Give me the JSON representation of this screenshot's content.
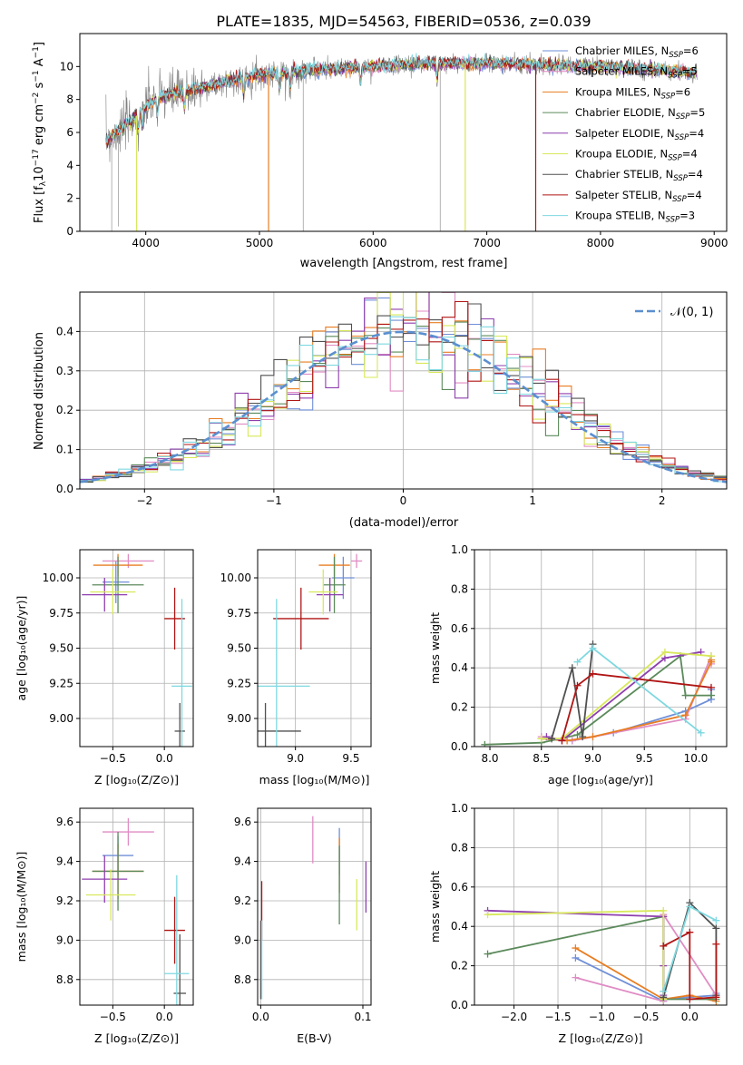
{
  "colors": {
    "Chabrier MILES": "#6f8fd8",
    "Salpeter MILES": "#e08cc4",
    "Kroupa MILES": "#e87d22",
    "Chabrier ELODIE": "#5b8a5b",
    "Salpeter ELODIE": "#8e3fae",
    "Kroupa ELODIE": "#d8e85a",
    "Chabrier STELIB": "#505050",
    "Salpeter STELIB": "#b01515",
    "Kroupa STELIB": "#7fd8e0",
    "data": "#808080",
    "normal": "#5b8fd0"
  },
  "chart_data": [
    {
      "id": "spectrum",
      "type": "line",
      "title": "PLATE=1835, MJD=54563, FIBERID=0536, z=0.039",
      "xlabel": "wavelength [Angstrom, rest frame]",
      "ylabel": "Flux [f_λ10^-17 erg cm^-2 s^-1 A^-1]",
      "xlim": [
        3420,
        9110
      ],
      "ylim": [
        0,
        12
      ],
      "xticks": [
        "4000",
        "5000",
        "6000",
        "7000",
        "8000",
        "9000"
      ],
      "yticks": [
        "0",
        "2",
        "4",
        "6",
        "8",
        "10"
      ],
      "legend_position": "top-right",
      "legend": [
        "Chabrier MILES, N_SSP=6",
        "Salpeter MILES, N_SSP=5",
        "Kroupa MILES, N_SSP=6",
        "Chabrier ELODIE, N_SSP=5",
        "Salpeter ELODIE, N_SSP=4",
        "Kroupa ELODIE, N_SSP=4",
        "Chabrier STELIB, N_SSP=4",
        "Salpeter STELIB, N_SSP=4",
        "Kroupa STELIB, N_SSP=3"
      ],
      "continuum": [
        [
          3650,
          5.5
        ],
        [
          3800,
          6.3
        ],
        [
          3950,
          7.2
        ],
        [
          4100,
          8.1
        ],
        [
          4300,
          8.4
        ],
        [
          4600,
          8.9
        ],
        [
          5000,
          9.5
        ],
        [
          5500,
          9.8
        ],
        [
          6000,
          10.0
        ],
        [
          6500,
          10.2
        ],
        [
          7000,
          10.2
        ],
        [
          7500,
          10.1
        ],
        [
          8000,
          10.0
        ],
        [
          8500,
          9.8
        ],
        [
          8850,
          9.6
        ]
      ]
    },
    {
      "id": "residuals",
      "type": "bar",
      "xlabel": "(data-model)/error",
      "ylabel": "Normed distribution",
      "xlim": [
        -2.5,
        2.5
      ],
      "ylim": [
        0,
        0.5
      ],
      "xticks": [
        "−2",
        "−1",
        "0",
        "1",
        "2"
      ],
      "yticks": [
        "0.0",
        "0.1",
        "0.2",
        "0.3",
        "0.4"
      ],
      "legend": [
        "𝒩(0, 1)"
      ],
      "legend_position": "top-right",
      "bin_width": 0.1
    },
    {
      "id": "age-vs-Z",
      "type": "scatter",
      "xlabel": "Z [log10(Z/Z⊙)]",
      "ylabel": "age [log10(age/yr)]",
      "xlim": [
        -0.82,
        0.28
      ],
      "ylim": [
        8.8,
        10.2
      ],
      "xticks": [
        "−0.5",
        "0.0"
      ],
      "yticks": [
        "9.00",
        "9.25",
        "9.50",
        "9.75",
        "10.00"
      ],
      "points": [
        {
          "s": "Chabrier MILES",
          "x": -0.47,
          "y": 9.97,
          "xe": 0.13,
          "ye": 0.15
        },
        {
          "s": "Salpeter MILES",
          "x": -0.35,
          "y": 10.12,
          "xe": 0.25,
          "ye": 0.05
        },
        {
          "s": "Kroupa MILES",
          "x": -0.45,
          "y": 10.09,
          "xe": 0.24,
          "ye": 0.08
        },
        {
          "s": "Chabrier ELODIE",
          "x": -0.45,
          "y": 9.95,
          "xe": 0.25,
          "ye": 0.2
        },
        {
          "s": "Salpeter ELODIE",
          "x": -0.58,
          "y": 9.88,
          "xe": 0.22,
          "ye": 0.12
        },
        {
          "s": "Kroupa ELODIE",
          "x": -0.5,
          "y": 9.9,
          "xe": 0.22,
          "ye": 0.16
        },
        {
          "s": "Chabrier STELIB",
          "x": 0.15,
          "y": 8.91,
          "xe": 0.05,
          "ye": 0.2
        },
        {
          "s": "Salpeter STELIB",
          "x": 0.1,
          "y": 9.71,
          "xe": 0.1,
          "ye": 0.22
        },
        {
          "s": "Kroupa STELIB",
          "x": 0.17,
          "y": 9.23,
          "xe": 0.1,
          "ye": 0.62
        }
      ]
    },
    {
      "id": "age-vs-mass",
      "type": "scatter",
      "xlabel": "mass [log10(M/M⊙)]",
      "ylabel": "",
      "xlim": [
        8.66,
        9.68
      ],
      "ylim": [
        8.8,
        10.2
      ],
      "xticks": [
        "9.0",
        "9.5"
      ],
      "yticks": [
        "9.00",
        "9.25",
        "9.50",
        "9.75",
        "10.00"
      ],
      "points": [
        {
          "s": "Chabrier MILES",
          "x": 9.43,
          "y": 10.0,
          "xe": 0.1,
          "ye": 0.15
        },
        {
          "s": "Salpeter MILES",
          "x": 9.55,
          "y": 10.12,
          "xe": 0.05,
          "ye": 0.05
        },
        {
          "s": "Kroupa MILES",
          "x": 9.35,
          "y": 10.09,
          "xe": 0.14,
          "ye": 0.08
        },
        {
          "s": "Chabrier ELODIE",
          "x": 9.35,
          "y": 9.95,
          "xe": 0.1,
          "ye": 0.2
        },
        {
          "s": "Salpeter ELODIE",
          "x": 9.31,
          "y": 9.88,
          "xe": 0.12,
          "ye": 0.12
        },
        {
          "s": "Kroupa ELODIE",
          "x": 9.25,
          "y": 9.9,
          "xe": 0.13,
          "ye": 0.16
        },
        {
          "s": "Chabrier STELIB",
          "x": 8.73,
          "y": 8.91,
          "xe": 0.32,
          "ye": 0.2
        },
        {
          "s": "Salpeter STELIB",
          "x": 9.05,
          "y": 9.71,
          "xe": 0.25,
          "ye": 0.22
        },
        {
          "s": "Kroupa STELIB",
          "x": 8.83,
          "y": 9.23,
          "xe": 0.3,
          "ye": 0.62
        }
      ]
    },
    {
      "id": "mass-weight-vs-age",
      "type": "line",
      "xlabel": "age [log10(age/yr)]",
      "ylabel": "mass weight",
      "xlim": [
        7.85,
        10.3
      ],
      "ylim": [
        0,
        1
      ],
      "xticks": [
        "8.0",
        "8.5",
        "9.0",
        "9.5",
        "10.0"
      ],
      "yticks": [
        "0.0",
        "0.2",
        "0.4",
        "0.6",
        "0.8",
        "1.0"
      ],
      "series": [
        {
          "name": "Chabrier MILES",
          "x": [
            8.5,
            8.8,
            9.2,
            9.9,
            10.15,
            10.15
          ],
          "y": [
            0.04,
            0.03,
            0.07,
            0.18,
            0.24,
            0.29
          ]
        },
        {
          "name": "Salpeter MILES",
          "x": [
            8.5,
            8.8,
            9.9,
            10.15,
            10.15
          ],
          "y": [
            0.05,
            0.03,
            0.14,
            0.46,
            0.42
          ]
        },
        {
          "name": "Kroupa MILES",
          "x": [
            8.5,
            8.75,
            9.0,
            9.9,
            10.15,
            10.15
          ],
          "y": [
            0.04,
            0.03,
            0.05,
            0.16,
            0.43,
            0.44
          ]
        },
        {
          "name": "Chabrier ELODIE",
          "x": [
            7.95,
            8.5,
            8.85,
            9.85,
            9.9,
            10.15
          ],
          "y": [
            0.01,
            0.02,
            0.06,
            0.46,
            0.26,
            0.26
          ]
        },
        {
          "name": "Salpeter ELODIE",
          "x": [
            8.55,
            8.7,
            9.7,
            10.05
          ],
          "y": [
            0.05,
            0.03,
            0.45,
            0.48
          ]
        },
        {
          "name": "Kroupa ELODIE",
          "x": [
            8.5,
            8.7,
            9.7,
            10.15
          ],
          "y": [
            0.04,
            0.04,
            0.48,
            0.46
          ]
        },
        {
          "name": "Chabrier STELIB",
          "x": [
            8.6,
            8.8,
            8.9,
            9.0
          ],
          "y": [
            0.04,
            0.4,
            0.05,
            0.52
          ]
        },
        {
          "name": "Salpeter STELIB",
          "x": [
            8.7,
            8.85,
            9.0,
            10.15
          ],
          "y": [
            0.03,
            0.31,
            0.37,
            0.3
          ]
        },
        {
          "name": "Kroupa STELIB",
          "x": [
            8.85,
            9.0,
            10.05
          ],
          "y": [
            0.43,
            0.5,
            0.07
          ]
        }
      ]
    },
    {
      "id": "mass-vs-Z",
      "type": "scatter",
      "xlabel": "Z [log10(Z/Z⊙)]",
      "ylabel": "mass [log10(M/M⊙)]",
      "xlim": [
        -0.82,
        0.28
      ],
      "ylim": [
        8.67,
        9.67
      ],
      "xticks": [
        "−0.5",
        "0.0"
      ],
      "yticks": [
        "8.8",
        "9.0",
        "9.2",
        "9.4",
        "9.6"
      ],
      "points": [
        {
          "s": "Chabrier MILES",
          "x": -0.45,
          "y": 9.43,
          "xe": 0.15,
          "ye": 0.1
        },
        {
          "s": "Salpeter MILES",
          "x": -0.35,
          "y": 9.55,
          "xe": 0.25,
          "ye": 0.07
        },
        {
          "s": "Kroupa MILES",
          "x": -0.45,
          "y": 9.35,
          "xe": 0.25,
          "ye": 0.14
        },
        {
          "s": "Chabrier ELODIE",
          "x": -0.45,
          "y": 9.35,
          "xe": 0.25,
          "ye": 0.2
        },
        {
          "s": "Salpeter ELODIE",
          "x": -0.58,
          "y": 9.31,
          "xe": 0.22,
          "ye": 0.12
        },
        {
          "s": "Kroupa ELODIE",
          "x": -0.52,
          "y": 9.23,
          "xe": 0.24,
          "ye": 0.13
        },
        {
          "s": "Chabrier STELIB",
          "x": 0.15,
          "y": 8.73,
          "xe": 0.06,
          "ye": 0.3
        },
        {
          "s": "Salpeter STELIB",
          "x": 0.1,
          "y": 9.05,
          "xe": 0.1,
          "ye": 0.17
        },
        {
          "s": "Kroupa STELIB",
          "x": 0.12,
          "y": 8.83,
          "xe": 0.12,
          "ye": 0.5
        }
      ]
    },
    {
      "id": "mass-vs-EBV",
      "type": "scatter",
      "xlabel": "E(B-V)",
      "ylabel": "",
      "xlim": [
        -0.003,
        0.108
      ],
      "ylim": [
        8.67,
        9.67
      ],
      "xticks": [
        "0.0",
        "0.1"
      ],
      "yticks": [
        "8.8",
        "9.0",
        "9.2",
        "9.4",
        "9.6"
      ],
      "points": [
        {
          "s": "Chabrier MILES",
          "x": 0.077,
          "y": 9.45,
          "ye": 0.12
        },
        {
          "s": "Salpeter MILES",
          "x": 0.051,
          "y": 9.51,
          "ye": 0.12
        },
        {
          "s": "Kroupa MILES",
          "x": 0.077,
          "y": 9.38,
          "ye": 0.14
        },
        {
          "s": "Chabrier ELODIE",
          "x": 0.077,
          "y": 9.28,
          "ye": 0.2
        },
        {
          "s": "Salpeter ELODIE",
          "x": 0.103,
          "y": 9.27,
          "ye": 0.13
        },
        {
          "s": "Kroupa ELODIE",
          "x": 0.094,
          "y": 9.18,
          "ye": 0.13
        },
        {
          "s": "Chabrier STELIB",
          "x": 0.0,
          "y": 8.9,
          "ye": 0.2
        },
        {
          "s": "Salpeter STELIB",
          "x": 0.001,
          "y": 9.15,
          "ye": 0.15
        },
        {
          "s": "Kroupa STELIB",
          "x": 0.001,
          "y": 8.9,
          "ye": 0.2
        }
      ]
    },
    {
      "id": "mass-weight-vs-Z",
      "type": "line",
      "xlabel": "Z [log10(Z/Z⊙)]",
      "ylabel": "mass weight",
      "xlim": [
        -2.45,
        0.42
      ],
      "ylim": [
        0,
        1
      ],
      "xticks": [
        "−2.0",
        "−1.5",
        "−1.0",
        "−0.5",
        "0.0"
      ],
      "yticks": [
        "0.0",
        "0.2",
        "0.4",
        "0.6",
        "0.8",
        "1.0"
      ],
      "series": [
        {
          "name": "Chabrier MILES",
          "x": [
            -1.3,
            -0.3,
            -0.3,
            0.0,
            0.3,
            0.3
          ],
          "y": [
            0.24,
            0.02,
            0.03,
            0.04,
            0.05,
            0.06
          ]
        },
        {
          "name": "Salpeter MILES",
          "x": [
            -1.3,
            -0.3,
            -0.3,
            0.3
          ],
          "y": [
            0.14,
            0.02,
            0.46,
            0.05
          ]
        },
        {
          "name": "Kroupa MILES",
          "x": [
            -1.3,
            -0.3,
            0.0,
            0.3
          ],
          "y": [
            0.29,
            0.03,
            0.05,
            0.02
          ]
        },
        {
          "name": "Chabrier ELODIE",
          "x": [
            -2.3,
            -0.3,
            -0.3,
            0.3
          ],
          "y": [
            0.26,
            0.45,
            0.03,
            0.03
          ]
        },
        {
          "name": "Salpeter ELODIE",
          "x": [
            -2.3,
            -0.3,
            -0.3,
            -0.3
          ],
          "y": [
            0.48,
            0.45,
            0.2,
            0.05
          ]
        },
        {
          "name": "Kroupa ELODIE",
          "x": [
            -2.3,
            -0.3,
            -0.3
          ],
          "y": [
            0.46,
            0.48,
            0.03
          ]
        },
        {
          "name": "Chabrier STELIB",
          "x": [
            -0.3,
            0.0,
            0.3,
            0.3
          ],
          "y": [
            0.04,
            0.52,
            0.39,
            0.05
          ]
        },
        {
          "name": "Salpeter STELIB",
          "x": [
            -0.3,
            0.0,
            0.0,
            0.3,
            0.3
          ],
          "y": [
            0.3,
            0.37,
            0.03,
            0.04,
            0.31
          ]
        },
        {
          "name": "Kroupa STELIB",
          "x": [
            -0.3,
            0.0,
            0.3
          ],
          "y": [
            0.07,
            0.5,
            0.43
          ]
        }
      ]
    }
  ]
}
